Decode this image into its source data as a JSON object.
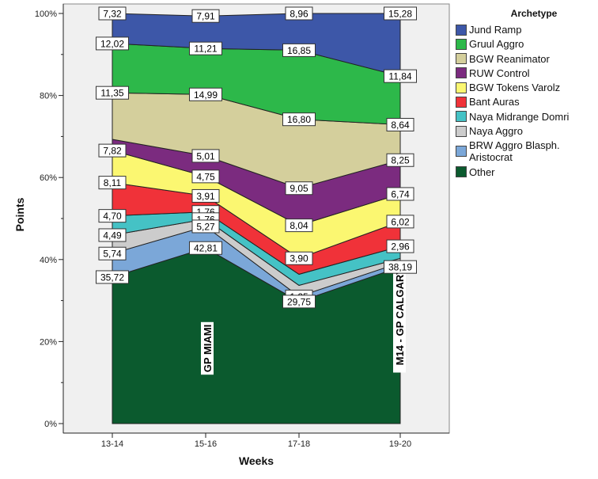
{
  "chart_data": {
    "type": "area",
    "stacked": true,
    "percent": true,
    "title": "",
    "xlabel": "Weeks",
    "ylabel": "Points",
    "categories": [
      "13-14",
      "15-16",
      "17-18",
      "19-20"
    ],
    "ylim": [
      0,
      100
    ],
    "yticks": [
      0,
      20,
      40,
      60,
      80,
      100
    ],
    "ytick_labels": [
      "0%",
      "20%",
      "40%",
      "60%",
      "80%",
      "100%"
    ],
    "legend_title": "Archetype",
    "legend_position": "right",
    "series": [
      {
        "name": "Other",
        "color": "#0b5a2e",
        "values": [
          35.72,
          42.81,
          29.75,
          38.19
        ]
      },
      {
        "name": "BRW  Aggro Blasph. Aristocrat",
        "color": "#7ba7d8",
        "values": [
          5.74,
          5.27,
          1.25,
          null
        ]
      },
      {
        "name": "Naya Aggro",
        "color": "#cccccc",
        "values": [
          4.49,
          1.76,
          null,
          null
        ]
      },
      {
        "name": "Naya Midrange Domri",
        "color": "#45c2c5",
        "values": [
          4.7,
          1.76,
          null,
          2.96
        ]
      },
      {
        "name": "Bant Auras",
        "color": "#f03239",
        "values": [
          8.11,
          3.91,
          3.9,
          6.02
        ]
      },
      {
        "name": "BGW Tokens Varolz",
        "color": "#fbf771",
        "values": [
          7.82,
          4.75,
          8.04,
          6.74
        ]
      },
      {
        "name": "RUW Control",
        "color": "#7b2b7f",
        "values": [
          null,
          5.01,
          9.05,
          8.25
        ]
      },
      {
        "name": "BGW Reanimator",
        "color": "#d4cf9c",
        "values": [
          11.35,
          14.99,
          16.8,
          8.64
        ]
      },
      {
        "name": "Gruul Aggro",
        "color": "#2db84a",
        "values": [
          12.02,
          11.21,
          16.85,
          11.84
        ]
      },
      {
        "name": "Jund Ramp",
        "color": "#3d57a8",
        "values": [
          7.32,
          7.91,
          8.96,
          15.28
        ]
      }
    ],
    "data_labels": [
      {
        "category": "13-14",
        "labels": [
          "7,32",
          "12,02",
          "11,35",
          "7,82",
          "8,11",
          "4,70",
          "4,49",
          "5,74",
          "35,72"
        ]
      },
      {
        "category": "15-16",
        "labels": [
          "7,91",
          "11,21",
          "14,99",
          "5,01",
          "4,75",
          "3,91",
          "1,76",
          "5,27",
          "42,81"
        ]
      },
      {
        "category": "17-18",
        "labels": [
          "8,96",
          "16,85",
          "16,80",
          "9,05",
          "8,04",
          "3,90",
          "1,25",
          "29,75"
        ]
      },
      {
        "category": "19-20",
        "labels": [
          "15,28",
          "11,84",
          "8,64",
          "8,25",
          "6,74",
          "6,02",
          "2,96",
          "38,19"
        ]
      }
    ],
    "annotations": [
      {
        "category": "15-16",
        "text": "GP MIAMI"
      },
      {
        "category": "19-20",
        "text": "M14  - GP CALGARY"
      }
    ],
    "grid": false
  }
}
